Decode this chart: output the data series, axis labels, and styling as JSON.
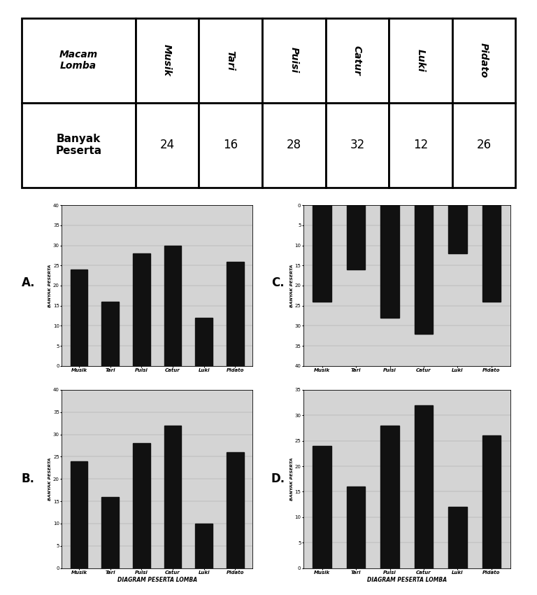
{
  "categories": [
    "Musik",
    "Tari",
    "Puisi",
    "Catur",
    "Luki",
    "Pidato"
  ],
  "chartA": {
    "values": [
      24,
      16,
      28,
      30,
      12,
      26
    ],
    "ylim": [
      0,
      40
    ],
    "yticks": [
      0,
      5,
      10,
      15,
      20,
      25,
      30,
      35,
      40
    ],
    "ylabel": "BANYAK PESERTA",
    "xlabel": "",
    "inverted": false
  },
  "chartB": {
    "values": [
      24,
      16,
      28,
      32,
      10,
      26
    ],
    "ylim": [
      0,
      40
    ],
    "yticks": [
      0,
      5,
      10,
      15,
      20,
      25,
      30,
      35,
      40
    ],
    "ylabel": "BANYAK PESERTA",
    "xlabel": "DIAGRAM PESERTA LOMBA",
    "inverted": false
  },
  "chartC": {
    "values": [
      24,
      16,
      28,
      32,
      12,
      24
    ],
    "ylim": [
      0,
      40
    ],
    "yticks": [
      40,
      35,
      30,
      25,
      20,
      15,
      10,
      5,
      0
    ],
    "ylabel": "BANYAK PESERTA",
    "xlabel": "",
    "inverted": true
  },
  "chartD": {
    "values": [
      24,
      16,
      28,
      32,
      12,
      26
    ],
    "ylim": [
      0,
      35
    ],
    "yticks": [
      0,
      5,
      10,
      15,
      20,
      25,
      30,
      35
    ],
    "ylabel": "BANYAK PESERTA",
    "xlabel": "DIAGRAM PESERTA LOMBA",
    "inverted": false
  },
  "table_col_labels": [
    "Musik",
    "Tari",
    "Puisi",
    "Catur",
    "Luki",
    "Pidato"
  ],
  "table_values": [
    24,
    16,
    28,
    32,
    12,
    26
  ],
  "bar_color": "#111111",
  "bg_color": "#d4d4d4",
  "label_A": "A.",
  "label_B": "B.",
  "label_C": "C.",
  "label_D": "D."
}
